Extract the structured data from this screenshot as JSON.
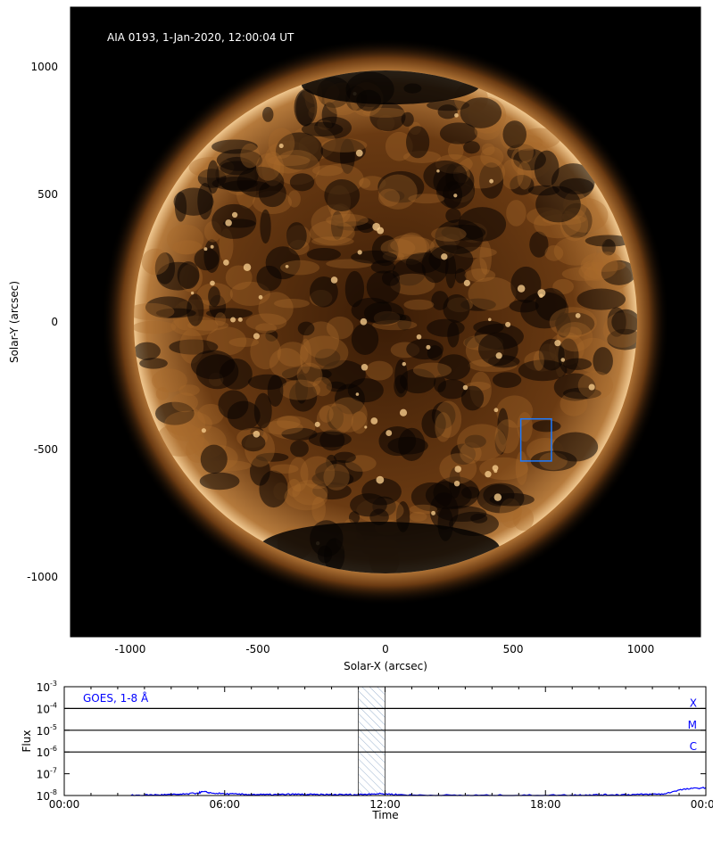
{
  "chart_data": [
    {
      "type": "image",
      "title": "AIA 0193, 1-Jan-2020, 12:00:04 UT",
      "xlabel": "Solar-X (arcsec)",
      "ylabel": "Solar-Y (arcsec)",
      "xlim": [
        -1234,
        1234
      ],
      "ylim": [
        -1234,
        1234
      ],
      "xticks": [
        -1000,
        -500,
        0,
        500,
        1000
      ],
      "yticks": [
        1000,
        500,
        0,
        -500,
        -1000
      ],
      "xtick_labels": [
        "-1000",
        "-500",
        "0",
        "500",
        "1000"
      ],
      "ytick_labels": [
        "1000",
        "500",
        "0",
        "-500",
        "-1000"
      ],
      "solar_radius_arcsec": 975,
      "highlight_box": {
        "x": [
          530,
          650
        ],
        "y": [
          -545,
          -380
        ],
        "color": "#1e7bff"
      },
      "colormap": "sdoaia193"
    },
    {
      "type": "line",
      "label": "GOES, 1-8 Å",
      "xlabel": "Time",
      "ylabel": "Flux",
      "yscale": "log",
      "ylim": [
        1e-08,
        0.001
      ],
      "xlim": [
        0,
        24
      ],
      "xtick_labels": [
        "00:00",
        "06:00",
        "12:00",
        "18:00",
        "00:00"
      ],
      "xtick_hours": [
        0,
        6,
        12,
        18,
        24
      ],
      "ytick_exponents": [
        -3,
        -4,
        -5,
        -6,
        -7,
        -8
      ],
      "flare_class_lines": [
        {
          "label": "X",
          "flux": 0.0001
        },
        {
          "label": "M",
          "flux": 1e-05
        },
        {
          "label": "C",
          "flux": 1e-06
        }
      ],
      "shaded_interval_hours": [
        11,
        12
      ],
      "series_color": "#0000ff",
      "series": [
        {
          "x_hours": [
            2.5,
            3,
            3.5,
            4,
            4.5,
            5,
            5.2,
            5.5,
            6,
            6.5,
            7,
            7.5,
            8,
            8.5,
            9,
            9.5,
            10,
            10.5,
            11,
            11.5,
            12,
            12.5,
            13,
            14,
            15,
            16,
            17,
            18,
            19,
            19.5,
            20,
            20.5,
            21,
            21.5,
            22,
            22.5,
            23,
            23.5,
            24
          ],
          "flux": [
            1.02e-08,
            1.05e-08,
            1.08e-08,
            1.1e-08,
            1.15e-08,
            1.3e-08,
            1.5e-08,
            1.3e-08,
            1.2e-08,
            1.15e-08,
            1.12e-08,
            1.1e-08,
            1.1e-08,
            1.15e-08,
            1.12e-08,
            1.1e-08,
            1.1e-08,
            1.1e-08,
            1.1e-08,
            1.2e-08,
            1.2e-08,
            1.1e-08,
            1.05e-08,
            1.03e-08,
            1.02e-08,
            1.02e-08,
            1.02e-08,
            1.03e-08,
            1.05e-08,
            1.07e-08,
            1.08e-08,
            1.08e-08,
            1.1e-08,
            1.12e-08,
            1.15e-08,
            1.2e-08,
            1.8e-08,
            2.1e-08,
            2.3e-08
          ]
        }
      ]
    }
  ]
}
